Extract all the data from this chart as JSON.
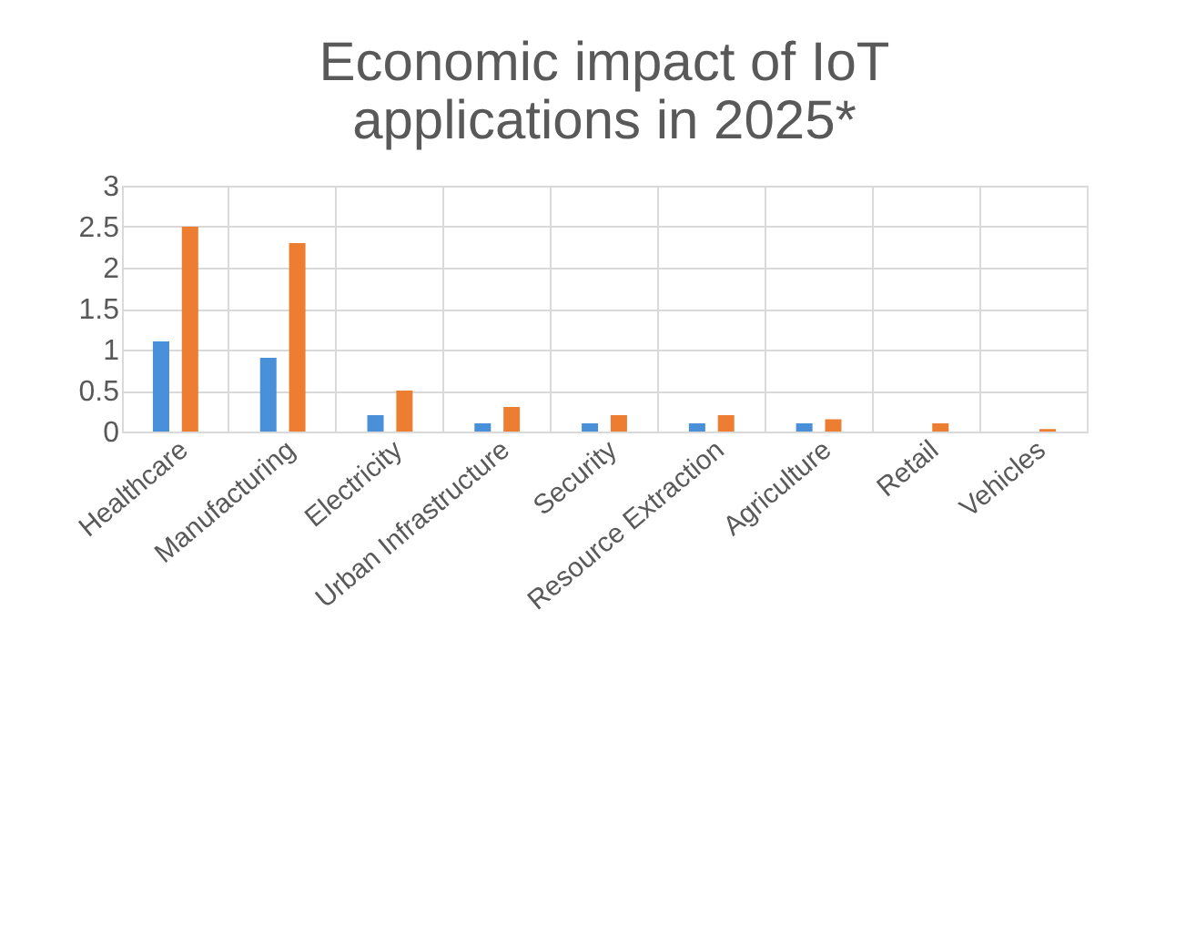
{
  "chart_data": {
    "type": "bar",
    "title": "Economic impact of IoT applications in 2025*",
    "categories": [
      "Healthcare",
      "Manufacturing",
      "Electricity",
      "Urban Infrastructure",
      "Security",
      "Resource Extraction",
      "Agriculture",
      "Retail",
      "Vehicles"
    ],
    "series": [
      {
        "color": "#4a90d9",
        "values": [
          1.1,
          0.9,
          0.2,
          0.1,
          0.1,
          0.1,
          0.1,
          0,
          0
        ]
      },
      {
        "color": "#ed7d31",
        "values": [
          2.5,
          2.3,
          0.5,
          0.3,
          0.2,
          0.2,
          0.15,
          0.1,
          0.03
        ]
      }
    ],
    "ylim": [
      0,
      3
    ],
    "yticks": [
      0,
      0.5,
      1,
      1.5,
      2,
      2.5,
      3
    ],
    "grid": true
  }
}
